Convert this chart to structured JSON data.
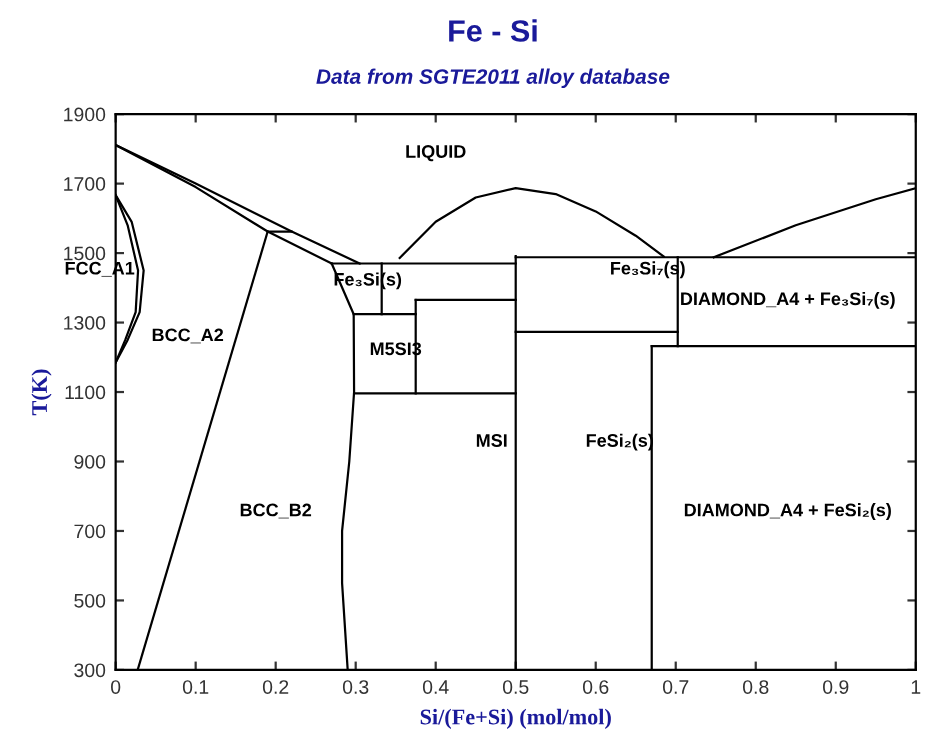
{
  "chart_data": {
    "type": "line",
    "title": "Fe - Si",
    "subtitle": "Data from SGTE2011 alloy database",
    "xlabel": "Si/(Fe+Si) (mol/mol)",
    "ylabel": "T(K)",
    "xlim": [
      0,
      1
    ],
    "ylim": [
      300,
      1900
    ],
    "xticks": [
      0,
      0.1,
      0.2,
      0.3,
      0.4,
      0.5,
      0.6,
      0.7,
      0.8,
      0.9,
      1
    ],
    "yticks": [
      300,
      500,
      700,
      900,
      1100,
      1300,
      1500,
      1700,
      1900
    ],
    "grid": false,
    "legend": false,
    "marker": "none",
    "line_style": "solid",
    "series": [
      {
        "color": "#000000",
        "x": [
          0,
          0.1,
          0.22,
          0.305
        ],
        "values": [
          1811,
          1700,
          1562,
          1470
        ]
      },
      {
        "color": "#000000",
        "x": [
          0,
          0.1,
          0.19,
          0.27
        ],
        "values": [
          1811,
          1690,
          1562,
          1470
        ]
      },
      {
        "color": "#000000",
        "x": [
          0.19,
          0.22
        ],
        "values": [
          1562,
          1562
        ]
      },
      {
        "color": "#000000",
        "x": [
          0.19,
          0.0275
        ],
        "values": [
          1562,
          300
        ]
      },
      {
        "color": "#000000",
        "x": [
          0,
          0.02,
          0.035,
          0.03,
          0.015,
          0
        ],
        "values": [
          1667,
          1590,
          1450,
          1330,
          1250,
          1185
        ]
      },
      {
        "color": "#000000",
        "x": [
          0,
          0.015,
          0.028,
          0.025,
          0.012,
          0
        ],
        "values": [
          1667,
          1580,
          1450,
          1330,
          1250,
          1185
        ]
      },
      {
        "color": "#000000",
        "x": [
          0.27,
          0.2975,
          0.298,
          0.292,
          0.283,
          0.283,
          0.29
        ],
        "values": [
          1470,
          1324,
          1100,
          900,
          700,
          550,
          300
        ]
      },
      {
        "color": "#000000",
        "x": [
          0.27,
          0.5
        ],
        "values": [
          1470,
          1470
        ]
      },
      {
        "color": "#000000",
        "x": [
          0.3325,
          0.3325
        ],
        "values": [
          1470,
          1324
        ]
      },
      {
        "color": "#000000",
        "x": [
          0.2975,
          0.375
        ],
        "values": [
          1324,
          1324
        ]
      },
      {
        "color": "#000000",
        "x": [
          0.375,
          0.5
        ],
        "values": [
          1365,
          1365
        ]
      },
      {
        "color": "#000000",
        "x": [
          0.375,
          0.375
        ],
        "values": [
          1365,
          1096
        ]
      },
      {
        "color": "#000000",
        "x": [
          0.298,
          0.5
        ],
        "values": [
          1096,
          1096
        ]
      },
      {
        "color": "#000000",
        "x": [
          0.355,
          0.4,
          0.45,
          0.5,
          0.55,
          0.6,
          0.65,
          0.685
        ],
        "values": [
          1486,
          1590,
          1660,
          1687,
          1670,
          1620,
          1550,
          1490
        ]
      },
      {
        "color": "#000000",
        "x": [
          0.5,
          0.5
        ],
        "values": [
          1491,
          300
        ]
      },
      {
        "color": "#000000",
        "x": [
          0.5,
          1
        ],
        "values": [
          1488,
          1488
        ]
      },
      {
        "color": "#000000",
        "x": [
          0.5,
          0.7025
        ],
        "values": [
          1273,
          1273
        ]
      },
      {
        "color": "#000000",
        "x": [
          0.7025,
          0.7025
        ],
        "values": [
          1488,
          1232
        ]
      },
      {
        "color": "#000000",
        "x": [
          0.67,
          1
        ],
        "values": [
          1232,
          1232
        ]
      },
      {
        "color": "#000000",
        "x": [
          0.67,
          0.67
        ],
        "values": [
          1232,
          300
        ]
      },
      {
        "color": "#000000",
        "x": [
          0.7475,
          0.85,
          0.95,
          1
        ],
        "values": [
          1488,
          1580,
          1655,
          1687
        ]
      }
    ],
    "annotations": [
      "LIQUID",
      "FCC_A1",
      "BCC_A2",
      "Fe₃Si(s)",
      "M5SI3",
      "Fe₃Si₇(s)",
      "DIAMOND_A4 + Fe₃Si₇(s)",
      "MSI",
      "FeSi₂(s)",
      "DIAMOND_A4 + FeSi₂(s)",
      "BCC_B2"
    ]
  }
}
